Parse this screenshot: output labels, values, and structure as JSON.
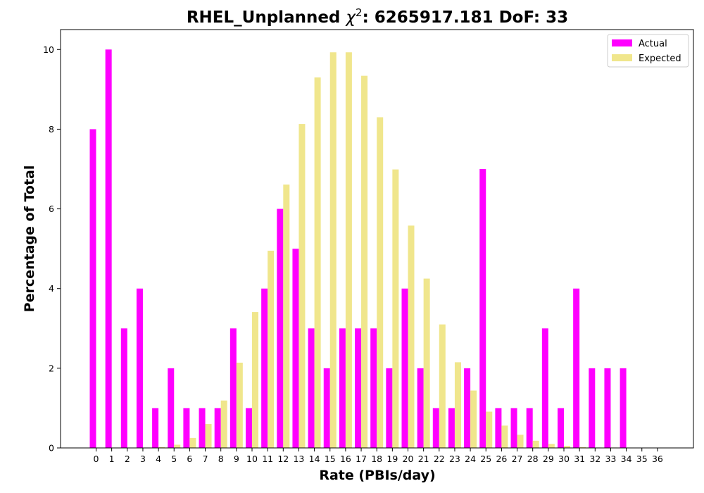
{
  "chart_data": {
    "type": "bar",
    "title": "RHEL_Unplanned χ²: 6265917.181 DoF: 33",
    "title_parts": {
      "prefix": "RHEL_Unplanned ",
      "chi": "χ",
      "sup": "2",
      "suffix": ": 6265917.181 DoF: 33"
    },
    "xlabel": "Rate (PBIs/day)",
    "ylabel": "Percentage of Total",
    "categories": [
      0,
      1,
      2,
      3,
      4,
      5,
      6,
      7,
      8,
      9,
      10,
      11,
      12,
      13,
      14,
      15,
      16,
      17,
      18,
      19,
      20,
      21,
      22,
      23,
      24,
      25,
      26,
      27,
      28,
      29,
      30,
      31,
      32,
      33,
      34,
      35,
      36
    ],
    "ylim": [
      0,
      10.5
    ],
    "yticks": [
      0,
      2,
      4,
      6,
      8,
      10
    ],
    "legend_position": "top-right",
    "grid": false,
    "series": [
      {
        "name": "Actual",
        "color": "#ff00ff",
        "values": [
          8,
          10,
          3,
          4,
          1,
          2,
          1,
          1,
          1,
          3,
          1,
          4,
          6,
          5,
          3,
          2,
          3,
          3,
          3,
          2,
          4,
          2,
          1,
          1,
          2,
          7,
          1,
          1,
          1,
          3,
          1,
          4,
          2,
          2,
          2,
          0,
          0
        ]
      },
      {
        "name": "Expected",
        "color": "#f0e68c",
        "values": [
          0,
          0,
          0,
          0,
          0.02,
          0.08,
          0.25,
          0.6,
          1.19,
          2.14,
          3.41,
          4.95,
          6.61,
          8.13,
          9.3,
          9.93,
          9.93,
          9.34,
          8.3,
          6.99,
          5.58,
          4.25,
          3.1,
          2.15,
          1.44,
          0.91,
          0.56,
          0.33,
          0.18,
          0.1,
          0.05,
          0.02,
          0.01,
          0.01,
          0,
          0,
          0
        ]
      }
    ]
  }
}
